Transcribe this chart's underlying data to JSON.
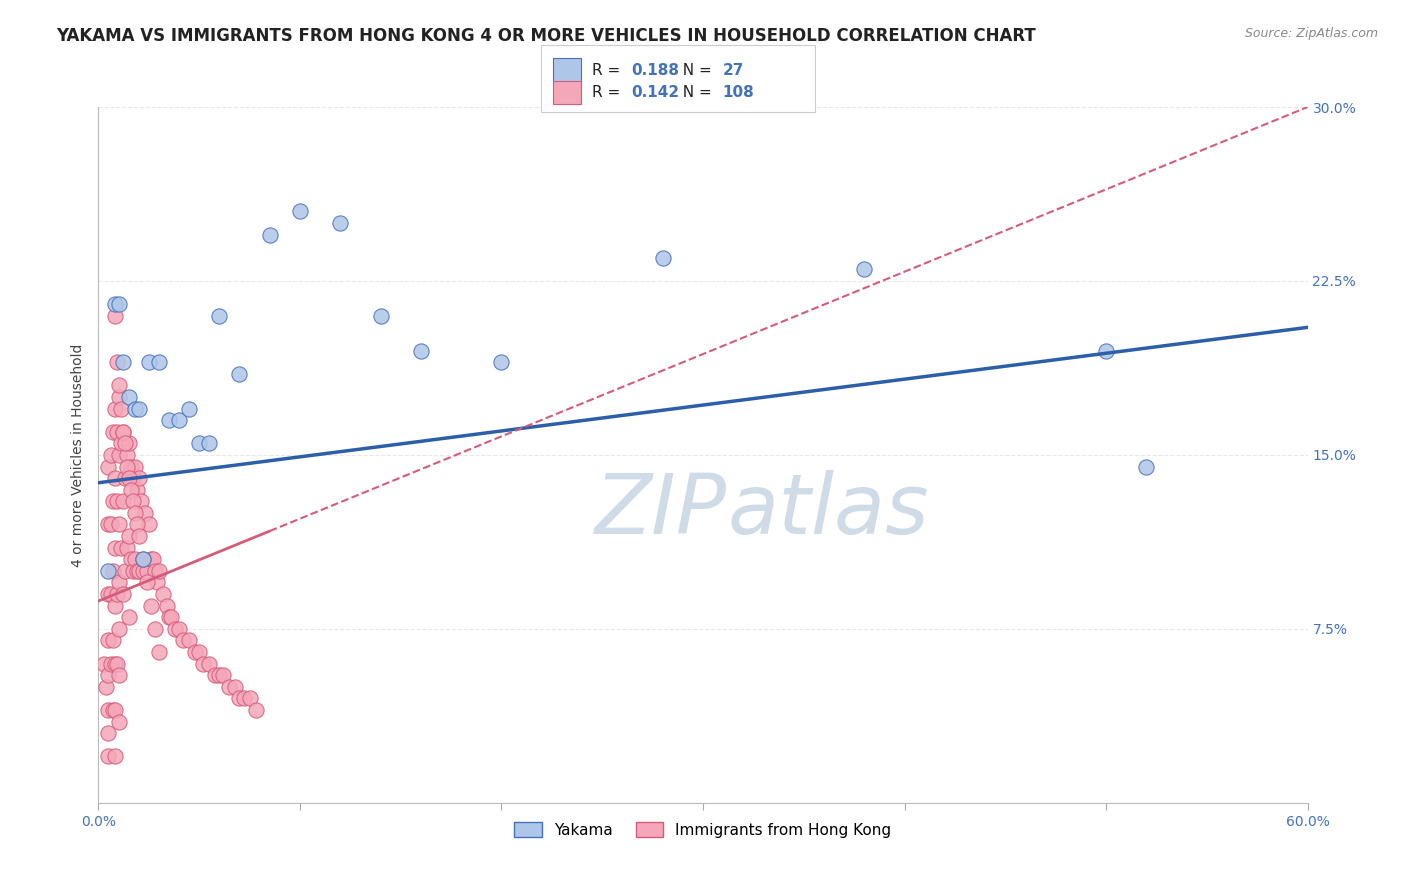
{
  "title": "YAKAMA VS IMMIGRANTS FROM HONG KONG 4 OR MORE VEHICLES IN HOUSEHOLD CORRELATION CHART",
  "source": "Source: ZipAtlas.com",
  "ylabel": "4 or more Vehicles in Household",
  "x_min": 0.0,
  "x_max": 0.6,
  "y_min": 0.0,
  "y_max": 0.3,
  "series1_name": "Yakama",
  "series1_color": "#aec6e8",
  "series1_edge_color": "#4472b8",
  "series1_R": 0.188,
  "series1_N": 27,
  "series1_line_color": "#2c5fa8",
  "series2_name": "Immigrants from Hong Kong",
  "series2_color": "#f4a7b9",
  "series2_edge_color": "#d45c7a",
  "series2_R": 0.142,
  "series2_N": 108,
  "series2_line_color": "#d45c7a",
  "background_color": "#ffffff",
  "watermark_color": "#cfdce8",
  "grid_color": "#e8e8e8",
  "title_fontsize": 12,
  "axis_label_fontsize": 10,
  "tick_fontsize": 10,
  "blue_text_color": "#4472b8",
  "yakama_x": [
    0.008,
    0.01,
    0.012,
    0.015,
    0.018,
    0.02,
    0.025,
    0.03,
    0.035,
    0.04,
    0.045,
    0.05,
    0.055,
    0.06,
    0.07,
    0.085,
    0.1,
    0.12,
    0.14,
    0.16,
    0.2,
    0.28,
    0.38,
    0.5,
    0.52,
    0.005,
    0.022
  ],
  "yakama_y": [
    0.215,
    0.215,
    0.19,
    0.175,
    0.17,
    0.17,
    0.19,
    0.19,
    0.165,
    0.165,
    0.17,
    0.155,
    0.155,
    0.21,
    0.185,
    0.245,
    0.255,
    0.25,
    0.21,
    0.195,
    0.19,
    0.235,
    0.23,
    0.195,
    0.145,
    0.1,
    0.105
  ],
  "hk_x": [
    0.003,
    0.004,
    0.005,
    0.005,
    0.005,
    0.005,
    0.005,
    0.005,
    0.005,
    0.005,
    0.006,
    0.006,
    0.006,
    0.006,
    0.007,
    0.007,
    0.007,
    0.007,
    0.007,
    0.008,
    0.008,
    0.008,
    0.008,
    0.008,
    0.008,
    0.008,
    0.009,
    0.009,
    0.009,
    0.009,
    0.01,
    0.01,
    0.01,
    0.01,
    0.01,
    0.01,
    0.01,
    0.011,
    0.011,
    0.012,
    0.012,
    0.012,
    0.013,
    0.013,
    0.014,
    0.014,
    0.015,
    0.015,
    0.015,
    0.016,
    0.016,
    0.017,
    0.017,
    0.018,
    0.018,
    0.019,
    0.019,
    0.02,
    0.02,
    0.021,
    0.022,
    0.023,
    0.024,
    0.025,
    0.026,
    0.027,
    0.028,
    0.029,
    0.03,
    0.032,
    0.034,
    0.035,
    0.036,
    0.038,
    0.04,
    0.042,
    0.045,
    0.048,
    0.05,
    0.052,
    0.055,
    0.058,
    0.06,
    0.062,
    0.065,
    0.068,
    0.07,
    0.072,
    0.075,
    0.078,
    0.008,
    0.009,
    0.01,
    0.011,
    0.012,
    0.013,
    0.014,
    0.015,
    0.016,
    0.017,
    0.018,
    0.019,
    0.02,
    0.022,
    0.024,
    0.026,
    0.028,
    0.03
  ],
  "hk_y": [
    0.06,
    0.05,
    0.145,
    0.12,
    0.09,
    0.07,
    0.055,
    0.04,
    0.03,
    0.02,
    0.15,
    0.12,
    0.09,
    0.06,
    0.16,
    0.13,
    0.1,
    0.07,
    0.04,
    0.17,
    0.14,
    0.11,
    0.085,
    0.06,
    0.04,
    0.02,
    0.16,
    0.13,
    0.09,
    0.06,
    0.175,
    0.15,
    0.12,
    0.095,
    0.075,
    0.055,
    0.035,
    0.155,
    0.11,
    0.16,
    0.13,
    0.09,
    0.14,
    0.1,
    0.15,
    0.11,
    0.155,
    0.115,
    0.08,
    0.145,
    0.105,
    0.14,
    0.1,
    0.145,
    0.105,
    0.135,
    0.1,
    0.14,
    0.1,
    0.13,
    0.1,
    0.125,
    0.1,
    0.12,
    0.105,
    0.105,
    0.1,
    0.095,
    0.1,
    0.09,
    0.085,
    0.08,
    0.08,
    0.075,
    0.075,
    0.07,
    0.07,
    0.065,
    0.065,
    0.06,
    0.06,
    0.055,
    0.055,
    0.055,
    0.05,
    0.05,
    0.045,
    0.045,
    0.045,
    0.04,
    0.21,
    0.19,
    0.18,
    0.17,
    0.16,
    0.155,
    0.145,
    0.14,
    0.135,
    0.13,
    0.125,
    0.12,
    0.115,
    0.105,
    0.095,
    0.085,
    0.075,
    0.065
  ]
}
